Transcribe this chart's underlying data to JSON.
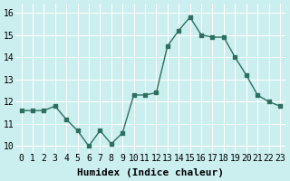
{
  "x": [
    0,
    1,
    2,
    3,
    4,
    5,
    6,
    7,
    8,
    9,
    10,
    11,
    12,
    13,
    14,
    15,
    16,
    17,
    18,
    19,
    20,
    21,
    22,
    23
  ],
  "y": [
    11.6,
    11.6,
    11.6,
    11.8,
    11.2,
    10.7,
    10.0,
    10.7,
    10.1,
    10.6,
    12.3,
    12.3,
    12.4,
    14.5,
    15.2,
    15.8,
    15.0,
    14.9,
    14.9,
    14.0,
    13.2,
    12.3,
    12.0,
    11.8
  ],
  "x_ticks": [
    0,
    1,
    2,
    3,
    4,
    5,
    6,
    7,
    8,
    9,
    10,
    11,
    12,
    13,
    14,
    15,
    16,
    17,
    18,
    19,
    20,
    21,
    22,
    23
  ],
  "x_tick_labels": [
    "0",
    "1",
    "2",
    "3",
    "4",
    "5",
    "6",
    "7",
    "8",
    "9",
    "10",
    "11",
    "12",
    "13",
    "14",
    "15",
    "16",
    "17",
    "18",
    "19",
    "20",
    "21",
    "22",
    "23"
  ],
  "y_ticks": [
    10,
    11,
    12,
    13,
    14,
    15,
    16
  ],
  "xlim": [
    -0.5,
    23.5
  ],
  "ylim": [
    9.7,
    16.4
  ],
  "xlabel": "Humidex (Indice chaleur)",
  "line_color": "#2d7060",
  "marker_color": "#2d7060",
  "bg_color": "#cbeeee",
  "grid_color": "#ffffff",
  "xlabel_fontsize": 8,
  "tick_fontsize": 7
}
